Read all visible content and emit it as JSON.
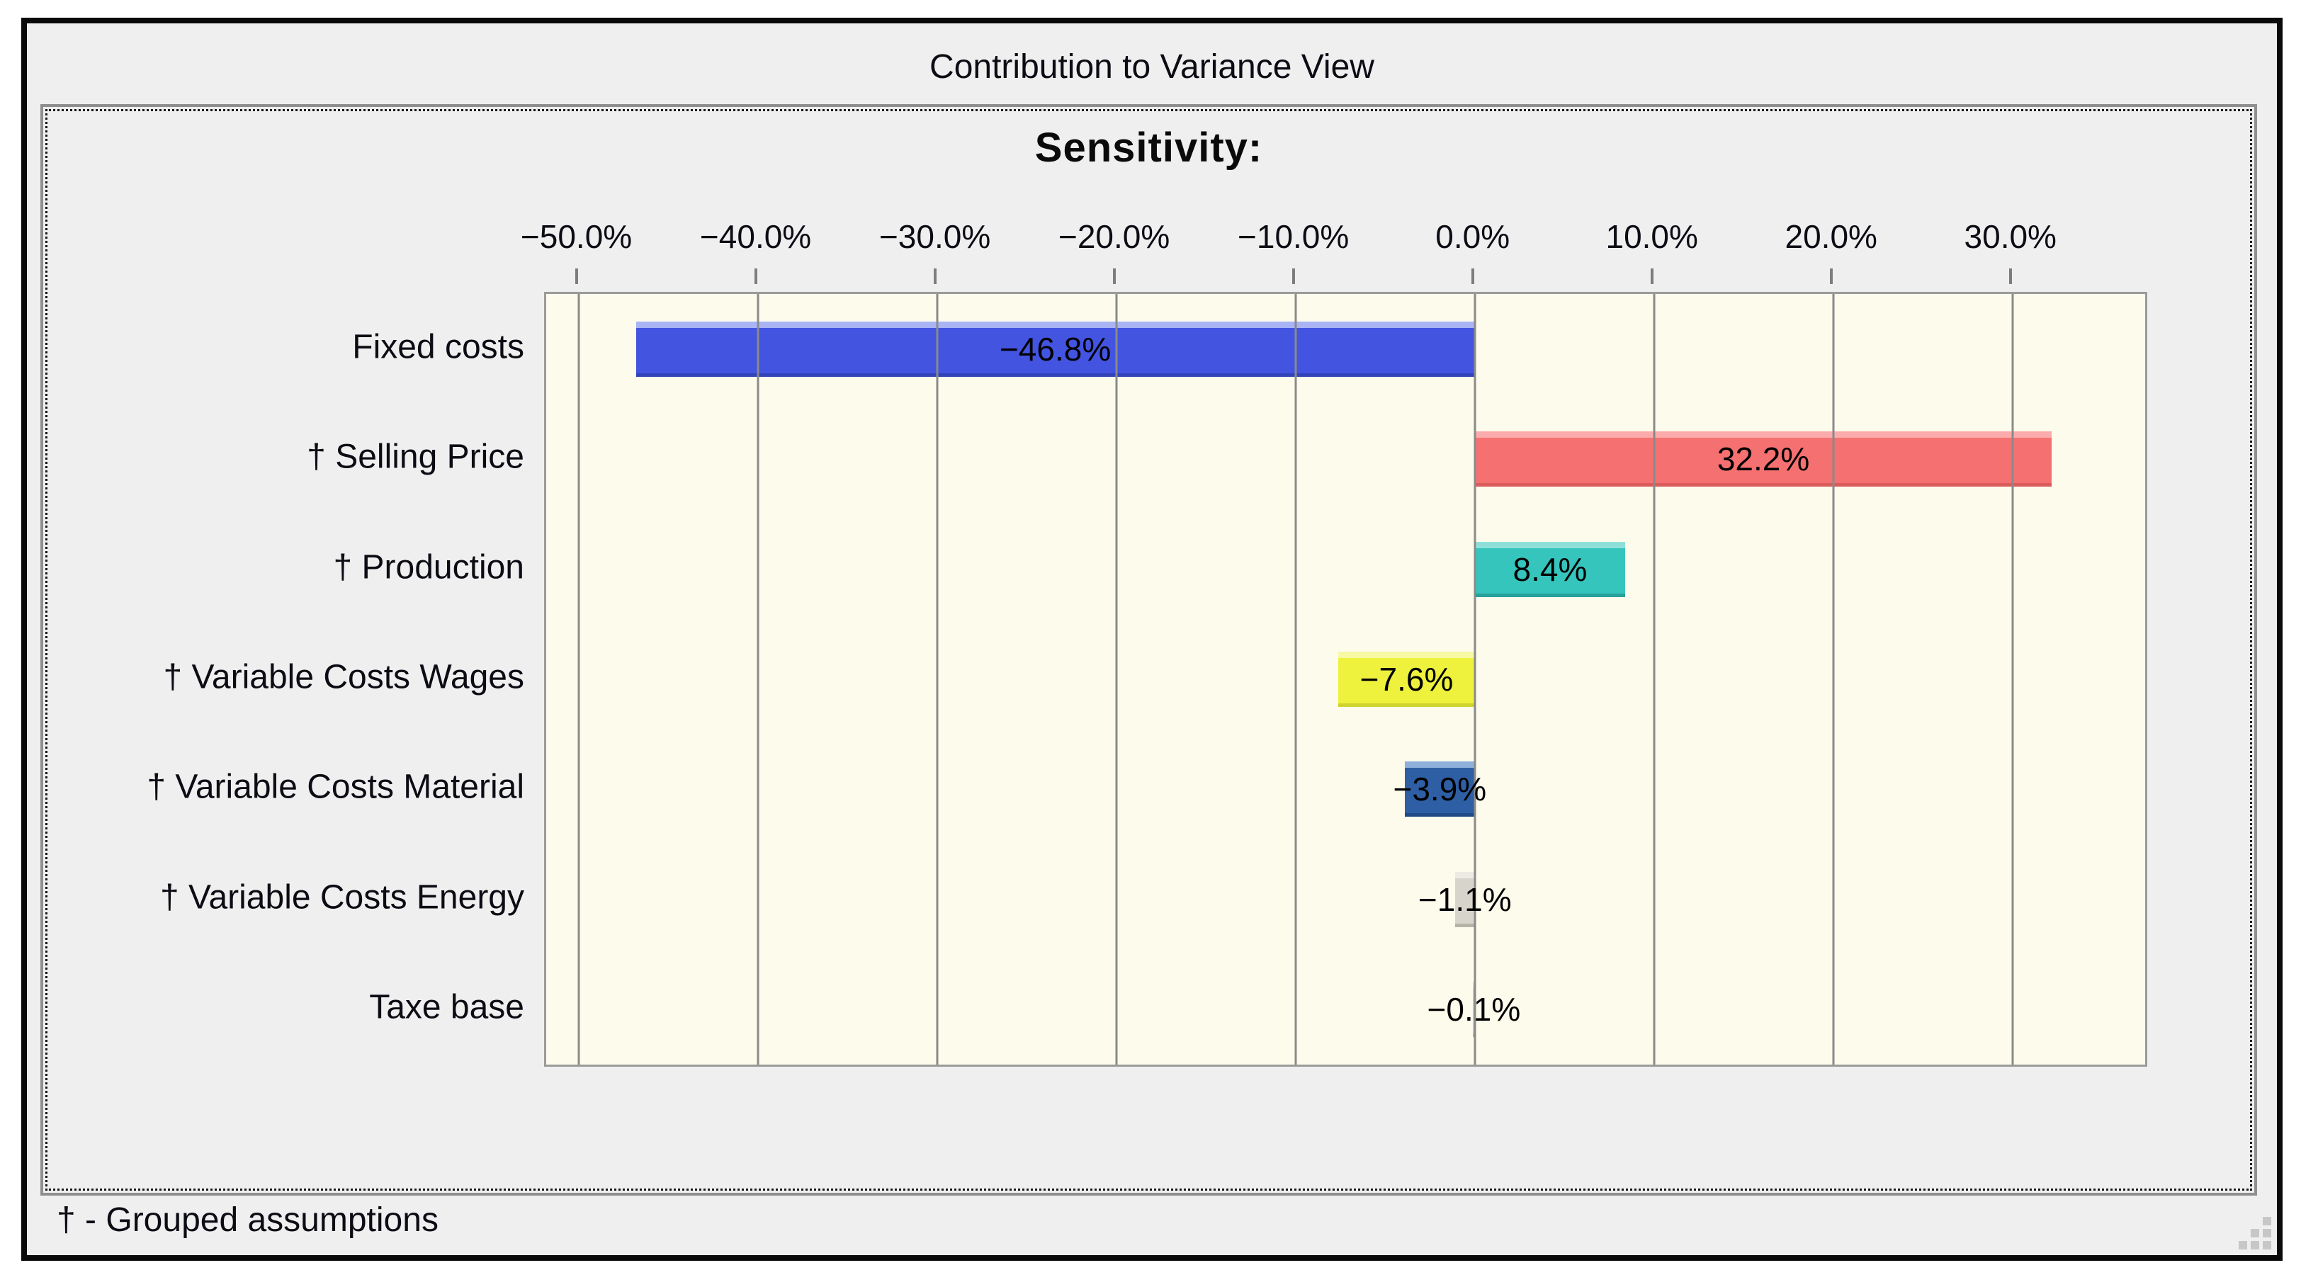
{
  "window": {
    "title": "Contribution to Variance View",
    "footnote": "† - Grouped assumptions"
  },
  "chart_data": {
    "type": "bar",
    "orientation": "horizontal",
    "title": "Sensitivity:",
    "categories": [
      "Fixed costs",
      "† Selling Price",
      "† Production",
      "† Variable Costs Wages",
      "† Variable Costs Material",
      "† Variable Costs Energy",
      "Taxe base"
    ],
    "values": [
      -46.8,
      32.2,
      8.4,
      -7.6,
      -3.9,
      -1.1,
      -0.1
    ],
    "value_labels": [
      "−46.8%",
      "32.2%",
      "8.4%",
      "−7.6%",
      "−3.9%",
      "−1.1%",
      "−0.1%"
    ],
    "bar_colors": [
      {
        "fill": "#4254e0",
        "light": "#a9b4f4",
        "dark": "#3343b8"
      },
      {
        "fill": "#f57070",
        "light": "#fbabab",
        "dark": "#db5c5c"
      },
      {
        "fill": "#36c5bd",
        "light": "#90e0da",
        "dark": "#28a19b"
      },
      {
        "fill": "#eef23c",
        "light": "#f7f9a4",
        "dark": "#cfd32e"
      },
      {
        "fill": "#2e5fa4",
        "light": "#8fb0da",
        "dark": "#1f4a85"
      },
      {
        "fill": "#d7d4cb",
        "light": "#eceae3",
        "dark": "#b5b2a8"
      },
      {
        "fill": "#c9c9c9",
        "light": "#d9d9d9",
        "dark": "#b0b0b0"
      }
    ],
    "axis": {
      "min": -51.8,
      "max": 37.4,
      "ticks": [
        -50,
        -40,
        -30,
        -20,
        -10,
        0,
        10,
        20,
        30
      ],
      "tick_labels": [
        "−50.0%",
        "−40.0%",
        "−30.0%",
        "−20.0%",
        "−10.0%",
        "0.0%",
        "10.0%",
        "20.0%",
        "30.0%"
      ]
    },
    "plot_bg": "#fdfbec",
    "grid_color": "#8a8a8a",
    "legend": "none",
    "grid": "vertical-on"
  }
}
